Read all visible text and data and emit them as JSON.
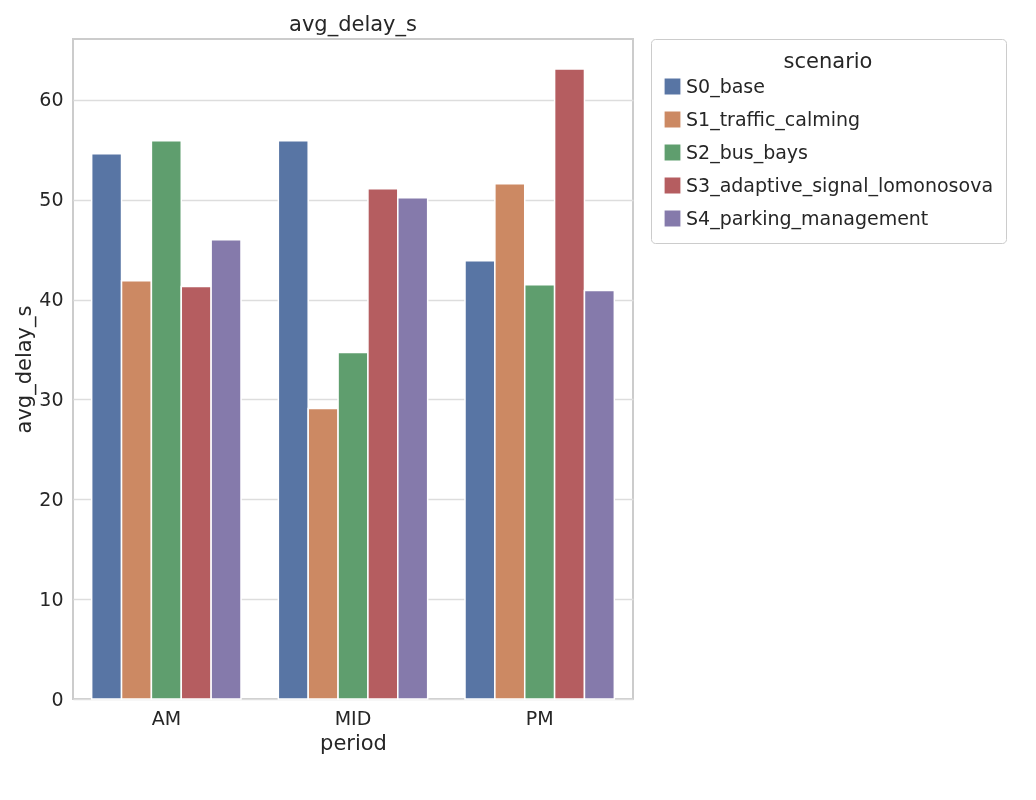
{
  "chart_data": {
    "type": "bar",
    "title": "avg_delay_s",
    "xlabel": "period",
    "ylabel": "avg_delay_s",
    "legend_title": "scenario",
    "categories": [
      "AM",
      "MID",
      "PM"
    ],
    "series": [
      {
        "name": "S0_base",
        "color": "#5875a4",
        "values": [
          54.6,
          55.9,
          43.9
        ]
      },
      {
        "name": "S1_traffic_calming",
        "color": "#cc8963",
        "values": [
          41.9,
          29.1,
          51.6
        ]
      },
      {
        "name": "S2_bus_bays",
        "color": "#5f9e6e",
        "values": [
          55.9,
          34.7,
          41.5
        ]
      },
      {
        "name": "S3_adaptive_signal_lomonosova",
        "color": "#b55d60",
        "values": [
          41.3,
          51.1,
          63.1
        ]
      },
      {
        "name": "S4_parking_management",
        "color": "#857aab",
        "values": [
          46.0,
          50.2,
          40.9
        ]
      }
    ],
    "ylim": [
      0,
      66.1
    ],
    "yticks": [
      0,
      10,
      20,
      30,
      40,
      50,
      60
    ],
    "grid": "y",
    "legend": "top right"
  }
}
